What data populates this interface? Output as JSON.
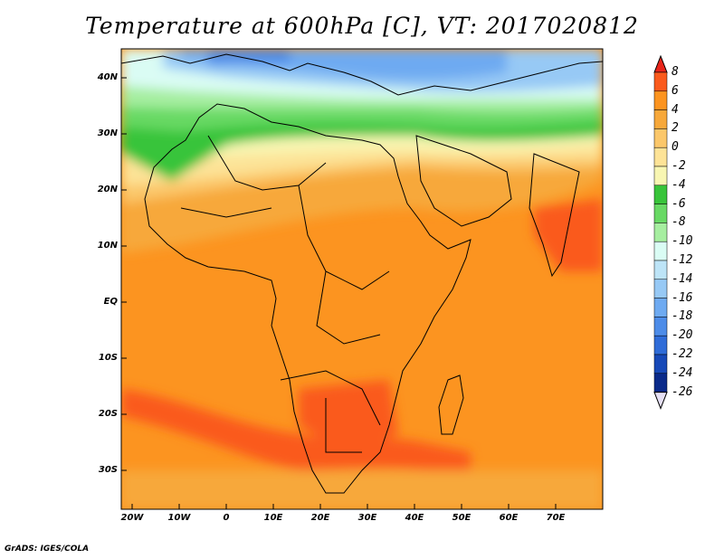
{
  "title": "Temperature at 600hPa [C], VT: 2017020812",
  "credit": "GrADS: IGES/COLA",
  "lat_labels": [
    "40N",
    "30N",
    "20N",
    "10N",
    "EQ",
    "10S",
    "20S",
    "30S"
  ],
  "lon_labels": [
    "20W",
    "10W",
    "0",
    "10E",
    "20E",
    "30E",
    "40E",
    "50E",
    "60E",
    "70E"
  ],
  "colorbar": {
    "labels": [
      "8",
      "6",
      "4",
      "2",
      "0",
      "-2",
      "-4",
      "-6",
      "-8",
      "-10",
      "-12",
      "-14",
      "-16",
      "-18",
      "-20",
      "-22",
      "-24",
      "-26"
    ],
    "colors": [
      "#e8251a",
      "#fa5a1c",
      "#fc9420",
      "#f7a83a",
      "#fbc76a",
      "#fde397",
      "#f8f6b2",
      "#38c43a",
      "#68d964",
      "#a6eea0",
      "#dafcf4",
      "#bde4f7",
      "#97c9f5",
      "#6eaaf1",
      "#4d8ce8",
      "#2f6cd8",
      "#1749b8",
      "#0a2a8a",
      "#071066"
    ]
  },
  "map": {
    "region": "Africa",
    "lon_range": [
      -22,
      80
    ],
    "lat_range": [
      -37,
      45
    ],
    "frame_color": "#000000"
  }
}
